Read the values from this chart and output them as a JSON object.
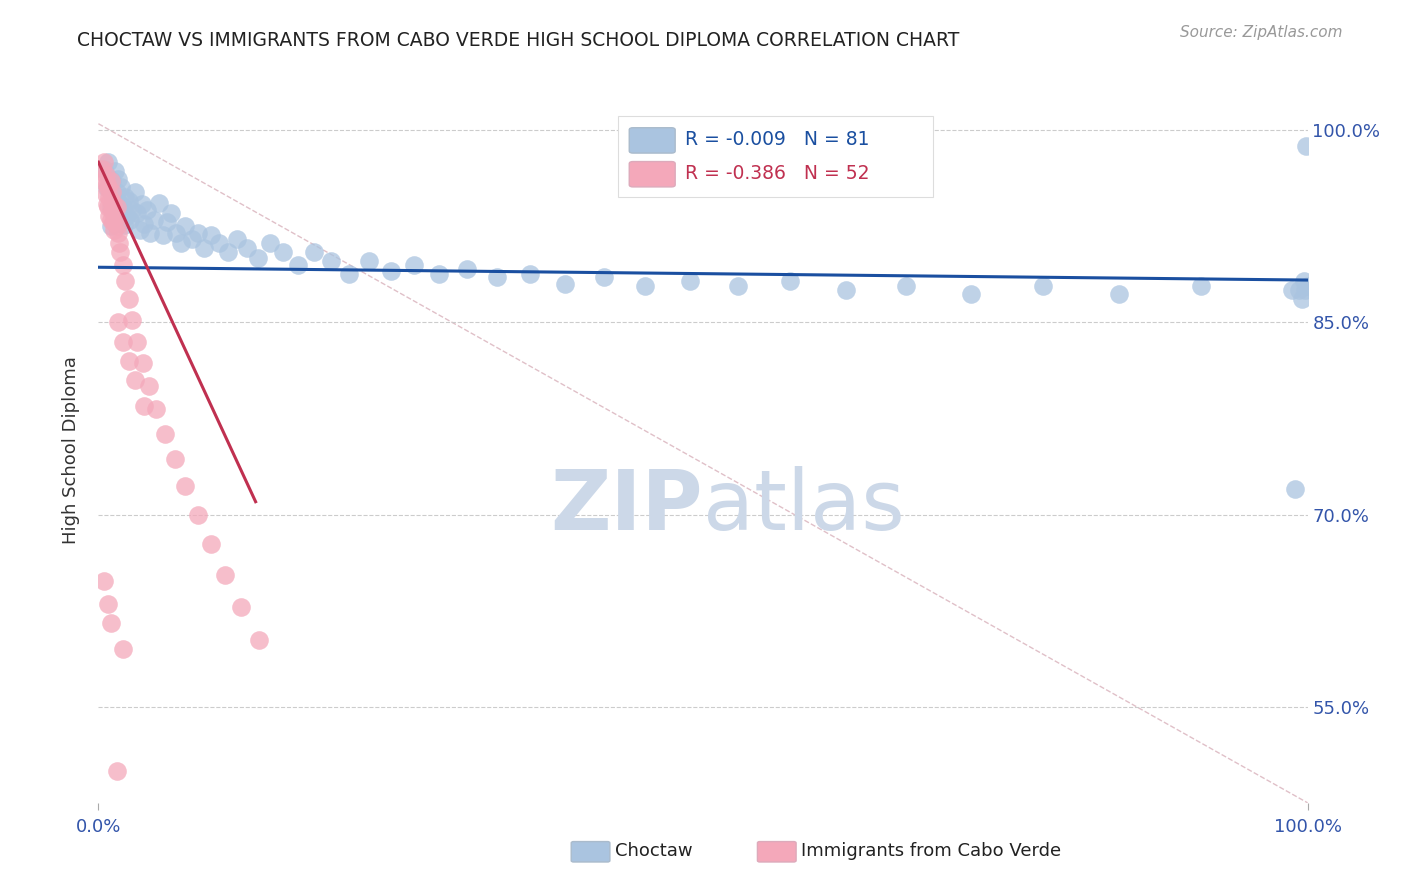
{
  "title": "CHOCTAW VS IMMIGRANTS FROM CABO VERDE HIGH SCHOOL DIPLOMA CORRELATION CHART",
  "source_text": "Source: ZipAtlas.com",
  "ylabel": "High School Diploma",
  "y_min": 0.475,
  "y_max": 1.025,
  "x_min": 0.0,
  "x_max": 1.0,
  "y_ticks": [
    0.55,
    0.7,
    0.85,
    1.0
  ],
  "y_tick_labels": [
    "55.0%",
    "70.0%",
    "85.0%",
    "100.0%"
  ],
  "x_tick_labels": [
    "0.0%",
    "100.0%"
  ],
  "legend_r1": "R = -0.009",
  "legend_n1": "N = 81",
  "legend_r2": "R = -0.386",
  "legend_n2": "N = 52",
  "choctaw_color": "#aac4e0",
  "cabo_verde_color": "#f4a8ba",
  "trend_blue_color": "#1a4fa0",
  "trend_pink_color": "#c03050",
  "ref_line_color": "#e0c0c8",
  "background_color": "#ffffff",
  "watermark_color": "#ccd8e8",
  "choctaw_x": [
    0.005,
    0.007,
    0.008,
    0.009,
    0.01,
    0.01,
    0.01,
    0.011,
    0.012,
    0.013,
    0.014,
    0.015,
    0.015,
    0.016,
    0.017,
    0.018,
    0.019,
    0.02,
    0.021,
    0.022,
    0.024,
    0.025,
    0.026,
    0.028,
    0.03,
    0.032,
    0.034,
    0.036,
    0.038,
    0.04,
    0.043,
    0.046,
    0.05,
    0.053,
    0.057,
    0.06,
    0.064,
    0.068,
    0.072,
    0.077,
    0.082,
    0.087,
    0.093,
    0.1,
    0.107,
    0.115,
    0.123,
    0.132,
    0.142,
    0.153,
    0.165,
    0.178,
    0.192,
    0.207,
    0.224,
    0.242,
    0.261,
    0.282,
    0.305,
    0.33,
    0.357,
    0.386,
    0.418,
    0.452,
    0.489,
    0.529,
    0.572,
    0.618,
    0.668,
    0.722,
    0.781,
    0.844,
    0.912,
    0.987,
    0.99,
    0.993,
    0.995,
    0.997,
    0.998,
    0.999,
    1.0
  ],
  "choctaw_y": [
    0.97,
    0.955,
    0.975,
    0.963,
    0.958,
    0.94,
    0.925,
    0.96,
    0.945,
    0.935,
    0.968,
    0.952,
    0.938,
    0.962,
    0.943,
    0.928,
    0.956,
    0.941,
    0.926,
    0.948,
    0.933,
    0.945,
    0.93,
    0.938,
    0.952,
    0.935,
    0.922,
    0.942,
    0.927,
    0.938,
    0.92,
    0.93,
    0.943,
    0.918,
    0.928,
    0.935,
    0.92,
    0.912,
    0.925,
    0.915,
    0.92,
    0.908,
    0.918,
    0.912,
    0.905,
    0.915,
    0.908,
    0.9,
    0.912,
    0.905,
    0.895,
    0.905,
    0.898,
    0.888,
    0.898,
    0.89,
    0.895,
    0.888,
    0.892,
    0.885,
    0.888,
    0.88,
    0.885,
    0.878,
    0.882,
    0.878,
    0.882,
    0.875,
    0.878,
    0.872,
    0.878,
    0.872,
    0.878,
    0.875,
    0.72,
    0.875,
    0.868,
    0.882,
    0.875,
    0.988,
    0.878
  ],
  "cabo_verde_x": [
    0.003,
    0.004,
    0.005,
    0.006,
    0.006,
    0.007,
    0.007,
    0.008,
    0.008,
    0.009,
    0.009,
    0.01,
    0.01,
    0.01,
    0.011,
    0.011,
    0.012,
    0.012,
    0.013,
    0.013,
    0.014,
    0.015,
    0.015,
    0.016,
    0.017,
    0.018,
    0.02,
    0.022,
    0.025,
    0.028,
    0.032,
    0.037,
    0.042,
    0.048,
    0.055,
    0.063,
    0.072,
    0.082,
    0.093,
    0.105,
    0.118,
    0.133,
    0.016,
    0.02,
    0.025,
    0.03,
    0.038,
    0.005,
    0.008,
    0.01,
    0.015,
    0.02
  ],
  "cabo_verde_y": [
    0.97,
    0.96,
    0.975,
    0.965,
    0.95,
    0.958,
    0.942,
    0.955,
    0.94,
    0.948,
    0.933,
    0.96,
    0.945,
    0.93,
    0.952,
    0.937,
    0.943,
    0.928,
    0.938,
    0.922,
    0.93,
    0.94,
    0.925,
    0.92,
    0.912,
    0.905,
    0.895,
    0.882,
    0.868,
    0.852,
    0.835,
    0.818,
    0.8,
    0.782,
    0.763,
    0.743,
    0.722,
    0.7,
    0.677,
    0.653,
    0.628,
    0.602,
    0.85,
    0.835,
    0.82,
    0.805,
    0.785,
    0.648,
    0.63,
    0.615,
    0.5,
    0.595
  ],
  "choctaw_trend_x": [
    0.0,
    1.0
  ],
  "choctaw_trend_y": [
    0.893,
    0.883
  ],
  "cabo_verde_trend_x": [
    0.0,
    0.13
  ],
  "cabo_verde_trend_y": [
    0.975,
    0.71
  ],
  "ref_line_x": [
    0.0,
    1.0
  ],
  "ref_line_y": [
    1.005,
    0.475
  ]
}
